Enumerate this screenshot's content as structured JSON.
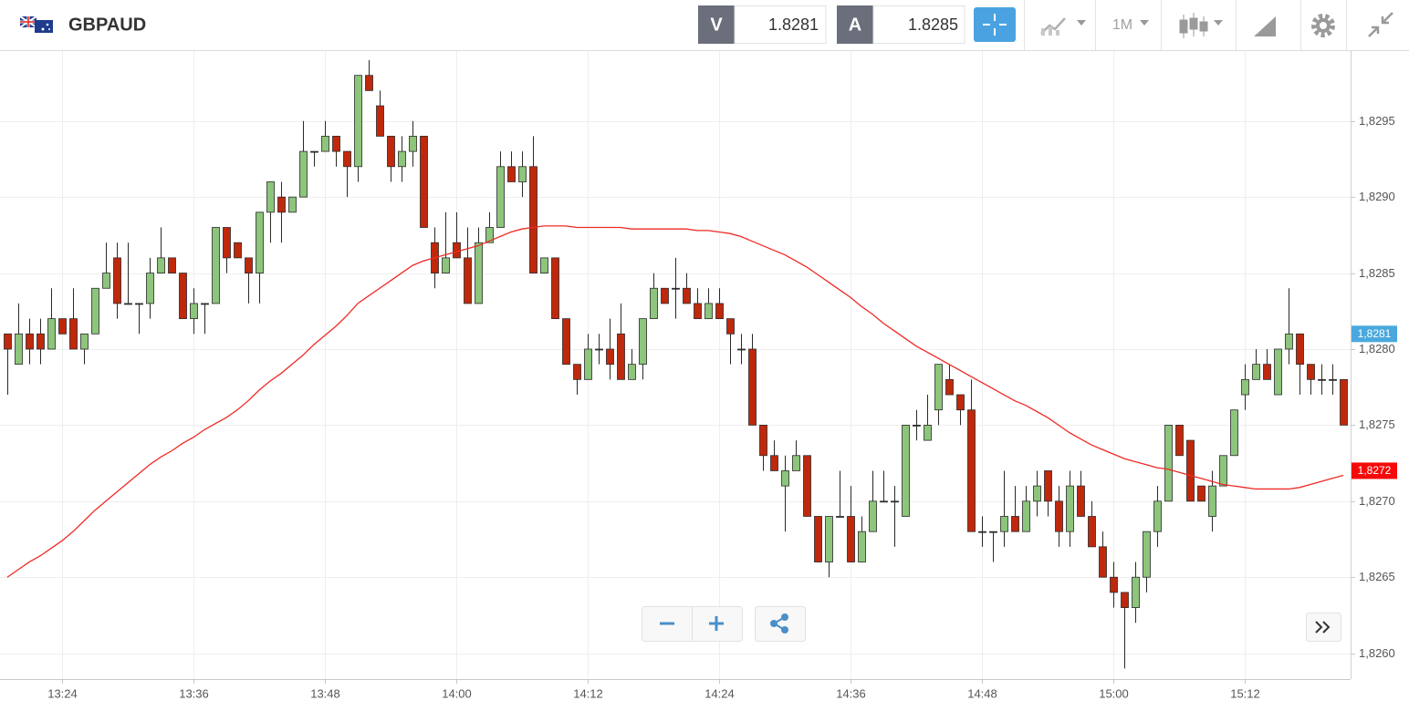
{
  "header": {
    "symbol": "GBPAUD",
    "sell_label": "V",
    "sell_price": "1.8281",
    "buy_label": "A",
    "buy_price": "1.8285",
    "timeframe": "1M"
  },
  "chart_data": {
    "type": "candlestick",
    "categories": [
      null,
      null,
      null,
      null,
      null,
      "13:24",
      null,
      null,
      null,
      null,
      null,
      null,
      null,
      null,
      null,
      null,
      null,
      "13:36",
      null,
      null,
      null,
      null,
      null,
      null,
      null,
      null,
      null,
      null,
      null,
      "13:48",
      null,
      null,
      null,
      null,
      null,
      null,
      null,
      null,
      null,
      null,
      null,
      "14:00",
      null,
      null,
      null,
      null,
      null,
      null,
      null,
      null,
      null,
      null,
      null,
      "14:12",
      null,
      null,
      null,
      null,
      null,
      null,
      null,
      null,
      null,
      null,
      null,
      "14:24",
      null,
      null,
      null,
      null,
      null,
      null,
      null,
      null,
      null,
      null,
      null,
      "14:36",
      null,
      null,
      null,
      null,
      null,
      null,
      null,
      null,
      null,
      null,
      null,
      "14:48",
      null,
      null,
      null,
      null,
      null,
      null,
      null,
      null,
      null,
      null,
      null,
      "15:00",
      null,
      null,
      null,
      null,
      null,
      null,
      null,
      null,
      null,
      null,
      null,
      "15:12",
      null,
      null,
      null,
      null,
      null,
      null,
      null,
      null,
      null
    ],
    "candles": {
      "up_color": "#8cc57b",
      "down_color": "#c0280c",
      "edge_color": "#2a2a2a",
      "open": [
        1.8281,
        1.8279,
        1.8281,
        1.8281,
        1.828,
        1.8282,
        1.8282,
        1.828,
        1.8281,
        1.8284,
        1.8286,
        1.8283,
        1.8283,
        1.8283,
        1.8285,
        1.8286,
        1.8285,
        1.8282,
        1.8283,
        1.8283,
        1.8288,
        1.8287,
        1.8286,
        1.8285,
        1.8289,
        1.829,
        1.8289,
        1.829,
        1.8293,
        1.8293,
        1.8294,
        1.8293,
        1.8292,
        1.8298,
        1.8296,
        1.8294,
        1.8292,
        1.8293,
        1.8294,
        1.8287,
        1.8285,
        1.8287,
        1.8286,
        1.8283,
        1.8287,
        1.8288,
        1.8292,
        1.8291,
        1.8292,
        1.8285,
        1.8286,
        1.8282,
        1.8279,
        1.8278,
        1.828,
        1.828,
        1.8281,
        1.8278,
        1.8279,
        1.8282,
        1.8284,
        1.8284,
        1.8284,
        1.8283,
        1.8282,
        1.8283,
        1.8282,
        1.828,
        1.828,
        1.8275,
        1.8273,
        1.8271,
        1.8272,
        1.8273,
        1.8269,
        1.8266,
        1.8269,
        1.8269,
        1.8266,
        1.8268,
        1.827,
        1.827,
        1.8269,
        1.8275,
        1.8274,
        1.8276,
        1.8278,
        1.8277,
        1.8276,
        1.8268,
        1.8268,
        1.8268,
        1.8269,
        1.8268,
        1.827,
        1.8272,
        1.827,
        1.8268,
        1.8271,
        1.8269,
        1.8267,
        1.8265,
        1.8264,
        1.8263,
        1.8265,
        1.8268,
        1.827,
        1.8275,
        1.8274,
        1.8271,
        1.8269,
        1.8271,
        1.8273,
        1.8277,
        1.8278,
        1.8279,
        1.8277,
        1.828,
        1.8281,
        1.8279,
        1.8278,
        1.8278,
        1.8278
      ],
      "high": [
        1.8281,
        1.8283,
        1.8282,
        1.8282,
        1.8284,
        1.8282,
        1.8284,
        1.8281,
        1.8284,
        1.8287,
        1.8287,
        1.8287,
        1.8283,
        1.8286,
        1.8288,
        1.8286,
        1.8285,
        1.8284,
        1.8283,
        1.8288,
        1.8288,
        1.8287,
        1.8286,
        1.8289,
        1.8291,
        1.8291,
        1.829,
        1.8295,
        1.8293,
        1.8295,
        1.8294,
        1.8293,
        1.8298,
        1.8299,
        1.8297,
        1.8294,
        1.8294,
        1.8295,
        1.8294,
        1.8288,
        1.8289,
        1.8289,
        1.8288,
        1.8288,
        1.8289,
        1.8293,
        1.8293,
        1.8293,
        1.8294,
        1.8286,
        1.8286,
        1.8282,
        1.8279,
        1.8281,
        1.8281,
        1.8282,
        1.8283,
        1.828,
        1.8282,
        1.8285,
        1.8284,
        1.8286,
        1.8285,
        1.8284,
        1.8284,
        1.8284,
        1.8282,
        1.8281,
        1.8281,
        1.8275,
        1.8274,
        1.8273,
        1.8274,
        1.8273,
        1.8269,
        1.8269,
        1.8272,
        1.8271,
        1.8269,
        1.8272,
        1.8272,
        1.8271,
        1.8275,
        1.8276,
        1.8277,
        1.8279,
        1.8279,
        1.8277,
        1.8278,
        1.8269,
        1.8268,
        1.8272,
        1.8271,
        1.8271,
        1.8272,
        1.8272,
        1.8271,
        1.8272,
        1.8272,
        1.827,
        1.8268,
        1.8266,
        1.8264,
        1.8266,
        1.8268,
        1.8271,
        1.8275,
        1.8275,
        1.8274,
        1.8271,
        1.8272,
        1.8273,
        1.8276,
        1.8279,
        1.828,
        1.828,
        1.828,
        1.8284,
        1.8281,
        1.8279,
        1.8279,
        1.8279,
        1.8278
      ],
      "low": [
        1.8277,
        1.8279,
        1.8279,
        1.8279,
        1.828,
        1.8281,
        1.828,
        1.8279,
        1.8281,
        1.8284,
        1.8282,
        1.8283,
        1.8281,
        1.8282,
        1.8285,
        1.8285,
        1.8282,
        1.8281,
        1.8281,
        1.8283,
        1.8285,
        1.8286,
        1.8283,
        1.8283,
        1.8287,
        1.8287,
        1.8289,
        1.829,
        1.8292,
        1.8293,
        1.8292,
        1.829,
        1.8291,
        1.8297,
        1.8294,
        1.8291,
        1.8291,
        1.8292,
        1.8288,
        1.8284,
        1.8285,
        1.8286,
        1.8283,
        1.8283,
        1.8287,
        1.8288,
        1.8291,
        1.829,
        1.8285,
        1.8285,
        1.8282,
        1.8279,
        1.8277,
        1.8278,
        1.8279,
        1.8278,
        1.8278,
        1.8278,
        1.8278,
        1.8282,
        1.8283,
        1.8282,
        1.8283,
        1.8282,
        1.8282,
        1.8282,
        1.8279,
        1.8279,
        1.8275,
        1.8272,
        1.8272,
        1.8268,
        1.8272,
        1.8269,
        1.8266,
        1.8265,
        1.8269,
        1.8266,
        1.8266,
        1.8268,
        1.827,
        1.8267,
        1.8269,
        1.8274,
        1.8274,
        1.8275,
        1.8277,
        1.8275,
        1.8268,
        1.8267,
        1.8266,
        1.8267,
        1.8268,
        1.8268,
        1.8269,
        1.8269,
        1.8267,
        1.8267,
        1.8269,
        1.8267,
        1.8265,
        1.8263,
        1.8259,
        1.8262,
        1.8264,
        1.8267,
        1.827,
        1.8273,
        1.827,
        1.827,
        1.8268,
        1.8271,
        1.8273,
        1.8276,
        1.8278,
        1.8278,
        1.8277,
        1.8279,
        1.8277,
        1.8277,
        1.8277,
        1.8277,
        1.8275
      ],
      "close": [
        1.828,
        1.8281,
        1.828,
        1.828,
        1.8282,
        1.8281,
        1.828,
        1.8281,
        1.8284,
        1.8285,
        1.8283,
        1.8283,
        1.8283,
        1.8285,
        1.8286,
        1.8285,
        1.8282,
        1.8283,
        1.8283,
        1.8288,
        1.8286,
        1.8286,
        1.8285,
        1.8289,
        1.8291,
        1.8289,
        1.829,
        1.8293,
        1.8293,
        1.8294,
        1.8293,
        1.8292,
        1.8298,
        1.8297,
        1.8294,
        1.8292,
        1.8293,
        1.8294,
        1.8288,
        1.8285,
        1.8286,
        1.8286,
        1.8283,
        1.8287,
        1.8288,
        1.8292,
        1.8291,
        1.8292,
        1.8285,
        1.8286,
        1.8282,
        1.8279,
        1.8278,
        1.828,
        1.828,
        1.8279,
        1.8278,
        1.8279,
        1.8282,
        1.8284,
        1.8283,
        1.8284,
        1.8283,
        1.8282,
        1.8283,
        1.8282,
        1.8281,
        1.828,
        1.8275,
        1.8273,
        1.8272,
        1.8272,
        1.8273,
        1.8269,
        1.8266,
        1.8269,
        1.8269,
        1.8266,
        1.8268,
        1.827,
        1.827,
        1.827,
        1.8275,
        1.8275,
        1.8275,
        1.8279,
        1.8277,
        1.8276,
        1.8268,
        1.8268,
        1.8268,
        1.8269,
        1.8268,
        1.827,
        1.8271,
        1.827,
        1.8268,
        1.8271,
        1.8269,
        1.8267,
        1.8265,
        1.8264,
        1.8263,
        1.8265,
        1.8268,
        1.827,
        1.8275,
        1.8273,
        1.827,
        1.827,
        1.8271,
        1.8273,
        1.8276,
        1.8278,
        1.8279,
        1.8278,
        1.828,
        1.8281,
        1.8279,
        1.8278,
        1.8278,
        1.8278,
        1.8275
      ]
    },
    "overlay": {
      "color": "#ee2a24",
      "values": [
        1.8265,
        1.82655,
        1.8266,
        1.82664,
        1.82669,
        1.82674,
        1.8268,
        1.82687,
        1.82694,
        1.827,
        1.82706,
        1.82712,
        1.82718,
        1.82724,
        1.82729,
        1.82733,
        1.82738,
        1.82742,
        1.82747,
        1.82751,
        1.82755,
        1.8276,
        1.82766,
        1.82773,
        1.82779,
        1.82784,
        1.8279,
        1.82796,
        1.82803,
        1.82809,
        1.82815,
        1.82822,
        1.8283,
        1.82835,
        1.8284,
        1.82845,
        1.8285,
        1.82855,
        1.82858,
        1.8286,
        1.82862,
        1.82864,
        1.82866,
        1.82868,
        1.82871,
        1.82874,
        1.82877,
        1.82879,
        1.8288,
        1.82881,
        1.82881,
        1.82881,
        1.8288,
        1.8288,
        1.8288,
        1.8288,
        1.8288,
        1.82879,
        1.82879,
        1.82879,
        1.82879,
        1.82879,
        1.82879,
        1.82878,
        1.82878,
        1.82877,
        1.82876,
        1.82874,
        1.82871,
        1.82868,
        1.82865,
        1.82862,
        1.82858,
        1.82854,
        1.82849,
        1.82844,
        1.82839,
        1.82834,
        1.82828,
        1.82823,
        1.82817,
        1.82812,
        1.82807,
        1.82802,
        1.82798,
        1.82794,
        1.8279,
        1.82786,
        1.82782,
        1.82778,
        1.82774,
        1.8277,
        1.82766,
        1.82763,
        1.82759,
        1.82755,
        1.8275,
        1.82745,
        1.82741,
        1.82737,
        1.82734,
        1.82731,
        1.82728,
        1.82726,
        1.82724,
        1.82722,
        1.82721,
        1.82719,
        1.82717,
        1.82715,
        1.82713,
        1.82711,
        1.8271,
        1.82709,
        1.82708,
        1.82708,
        1.82708,
        1.82708,
        1.82709,
        1.82711,
        1.82713,
        1.82715,
        1.82717
      ]
    },
    "price_tags": [
      {
        "value": 1.8281,
        "label": "1,8281",
        "color": "#4aa8de"
      },
      {
        "value": 1.8272,
        "label": "1,8272",
        "color": "#f50a0a"
      }
    ],
    "ylim": [
      1.82583,
      1.82996
    ],
    "yticks": [
      {
        "value": 1.826,
        "label": "1,8260"
      },
      {
        "value": 1.8265,
        "label": "1,8265"
      },
      {
        "value": 1.827,
        "label": "1,8270"
      },
      {
        "value": 1.8275,
        "label": "1,8275"
      },
      {
        "value": 1.828,
        "label": "1,8280"
      },
      {
        "value": 1.8285,
        "label": "1,8285"
      },
      {
        "value": 1.829,
        "label": "1,8290"
      },
      {
        "value": 1.8295,
        "label": "1,8295"
      }
    ],
    "grid": true
  }
}
